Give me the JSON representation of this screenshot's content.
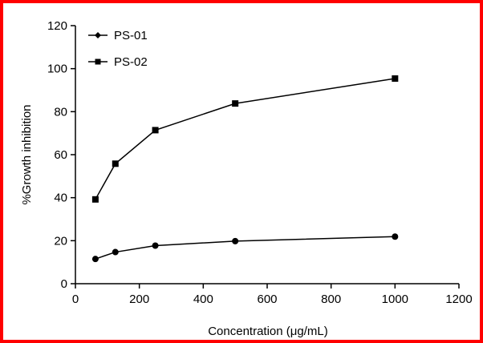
{
  "chart_data": {
    "type": "line",
    "title": "",
    "xlabel": "Concentration (μg/mL)",
    "ylabel": "%Growth inhibition",
    "xlim": [
      0,
      1200
    ],
    "ylim": [
      0,
      120
    ],
    "xticks": [
      0,
      200,
      400,
      600,
      800,
      1000,
      1200
    ],
    "yticks": [
      0,
      20,
      40,
      60,
      80,
      100,
      120
    ],
    "grid": false,
    "legend_position": "top-left",
    "series": [
      {
        "name": "PS-01",
        "marker": "circle",
        "color": "#000000",
        "x": [
          62.5,
          125,
          250,
          500,
          1000
        ],
        "y": [
          11.5,
          14.7,
          17.7,
          19.8,
          21.9
        ]
      },
      {
        "name": "PS-02",
        "marker": "square",
        "color": "#000000",
        "x": [
          62.5,
          125,
          250,
          500,
          1000
        ],
        "y": [
          39.2,
          55.8,
          71.4,
          83.8,
          95.4
        ]
      }
    ]
  },
  "colors": {
    "frame_border": "#ff0000",
    "series": "#000000",
    "background": "#ffffff"
  }
}
